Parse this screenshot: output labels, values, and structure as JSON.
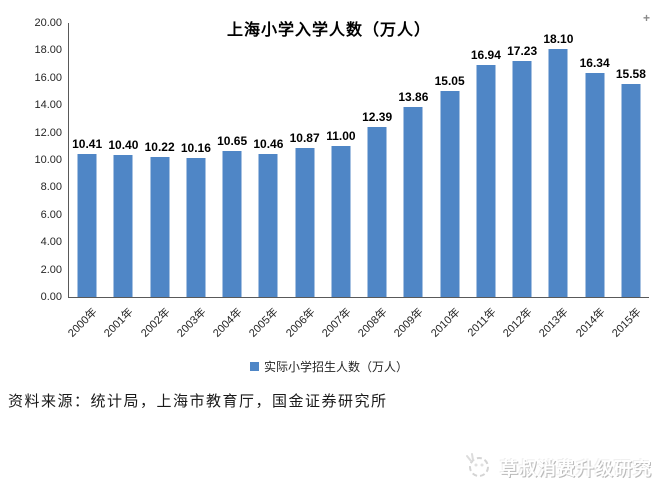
{
  "chart_data": {
    "type": "bar",
    "title": "上海小学入学人数（万人）",
    "categories": [
      "2000年",
      "2001年",
      "2002年",
      "2003年",
      "2004年",
      "2005年",
      "2006年",
      "2007年",
      "2008年",
      "2009年",
      "2010年",
      "2011年",
      "2012年",
      "2013年",
      "2014年",
      "2015年"
    ],
    "values": [
      10.41,
      10.4,
      10.22,
      10.16,
      10.65,
      10.46,
      10.87,
      11.0,
      12.39,
      13.86,
      15.05,
      16.94,
      17.23,
      18.1,
      16.34,
      15.58
    ],
    "value_labels": [
      "10.41",
      "10.40",
      "10.22",
      "10.16",
      "10.65",
      "10.46",
      "10.87",
      "11.00",
      "12.39",
      "13.86",
      "15.05",
      "16.94",
      "17.23",
      "18.10",
      "16.34",
      "15.58"
    ],
    "yticks": [
      "0.00",
      "2.00",
      "4.00",
      "6.00",
      "8.00",
      "10.00",
      "12.00",
      "14.00",
      "16.00",
      "18.00",
      "20.00"
    ],
    "ylim": [
      0,
      20
    ],
    "grid": false,
    "bar_color": "#4F86C6",
    "axis_color": "#595959",
    "legend_position": "bottom",
    "legend": [
      {
        "label": "实际小学招生人数（万人）",
        "color": "#4F86C6"
      }
    ]
  },
  "source_note": "资料来源：统计局，上海市教育厅，国金证券研究所",
  "watermark": {
    "text": "草叔消费升级研究",
    "logo": "doodle-circle-logo"
  },
  "artifacts": {
    "cursor_plus": "+"
  }
}
